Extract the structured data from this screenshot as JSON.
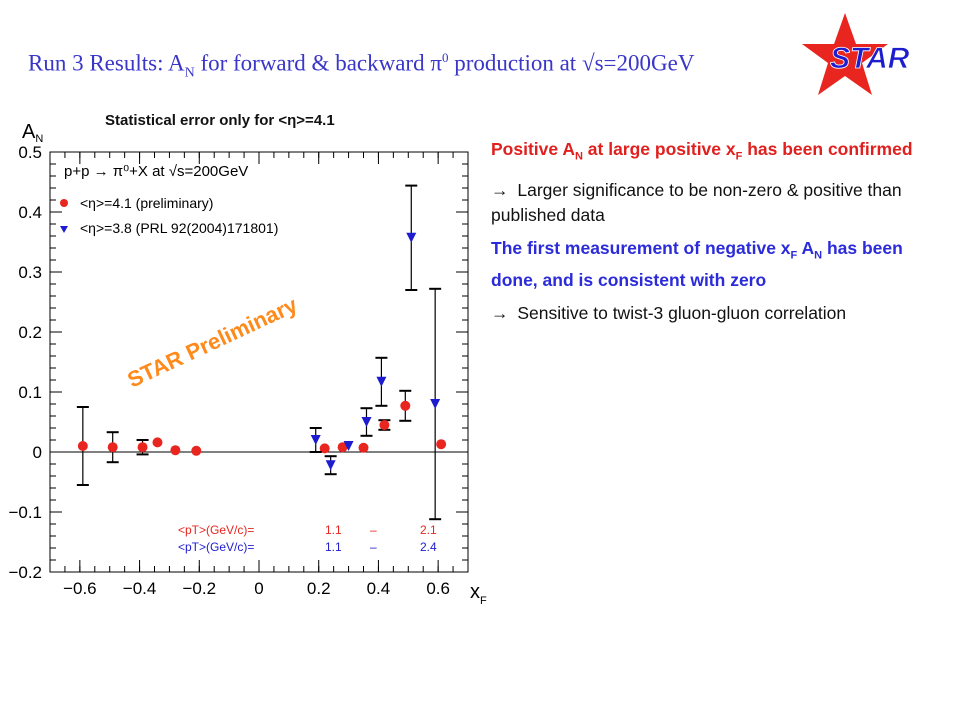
{
  "title": {
    "prefix": "Run 3 Results: A",
    "sub": "N",
    "middle": " for forward & backward π",
    "sup": "0",
    "suffix": " production at √s=200GeV"
  },
  "logo": {
    "text": "STAR",
    "star_color": "#e8261f",
    "text_color": "#1d1dcf"
  },
  "notes": {
    "b1": {
      "a": "Positive A",
      "a_sub": "N",
      "b": " at large positive x",
      "b_sub": "F",
      "c": "  has been confirmed"
    },
    "b2": {
      "arrow": "→",
      "text": " Larger significance to be non-zero & positive than published data"
    },
    "b3": {
      "a": "The first measurement of negative x",
      "a_sub": "F",
      "b": " A",
      "b_sub": "N",
      "c": " has been done, and is consistent with zero"
    },
    "b4": {
      "arrow": "→",
      "text": " Sensitive to twist-3 gluon-gluon correlation"
    }
  },
  "chart_data": {
    "type": "scatter",
    "caption": "Statistical error only for <η>=4.1",
    "ylabel": "AN",
    "xlabel": "xF",
    "xlim": [
      -0.7,
      0.7
    ],
    "ylim": [
      -0.2,
      0.5
    ],
    "x_ticks": [
      "−0.6",
      "−0.4",
      "−0.2",
      "0",
      "0.2",
      "0.4",
      "0.6"
    ],
    "y_ticks": [
      "−0.2",
      "−0.1",
      "0",
      "0.1",
      "0.2",
      "0.3",
      "0.4",
      "0.5"
    ],
    "reaction": "p+p → π⁰+X at √s=200GeV",
    "watermark": "STAR Preliminary",
    "pt_rows": [
      {
        "label": "<pT>(GeV/c)=",
        "low": "1.1",
        "dash": "–",
        "high": "2.1",
        "color": "#e8261f"
      },
      {
        "label": "<pT>(GeV/c)=",
        "low": "1.1",
        "dash": "–",
        "high": "2.4",
        "color": "#1d1dcf"
      }
    ],
    "series": [
      {
        "name": "<η>=4.1 (preliminary)",
        "marker": "circle",
        "color": "#e8261f",
        "points": [
          {
            "x": -0.59,
            "y": 0.01,
            "err": 0.065
          },
          {
            "x": -0.49,
            "y": 0.008,
            "err": 0.025
          },
          {
            "x": -0.39,
            "y": 0.008,
            "err": 0.012
          },
          {
            "x": -0.34,
            "y": 0.016,
            "err": 0.0
          },
          {
            "x": -0.28,
            "y": 0.003,
            "err": 0.0
          },
          {
            "x": -0.21,
            "y": 0.002,
            "err": 0.0
          },
          {
            "x": 0.22,
            "y": 0.006,
            "err": 0.0
          },
          {
            "x": 0.28,
            "y": 0.008,
            "err": 0.0
          },
          {
            "x": 0.35,
            "y": 0.007,
            "err": 0.0
          },
          {
            "x": 0.42,
            "y": 0.045,
            "err": 0.008
          },
          {
            "x": 0.49,
            "y": 0.077,
            "err": 0.025
          },
          {
            "x": 0.61,
            "y": 0.013,
            "err": 0.0
          }
        ]
      },
      {
        "name": "<η>=3.8 (PRL 92(2004)171801)",
        "marker": "triangle",
        "color": "#1d1dcf",
        "points": [
          {
            "x": 0.19,
            "y": 0.02,
            "err": 0.02
          },
          {
            "x": 0.24,
            "y": -0.022,
            "err": 0.015
          },
          {
            "x": 0.3,
            "y": 0.01,
            "err": 0.0
          },
          {
            "x": 0.36,
            "y": 0.05,
            "err": 0.023
          },
          {
            "x": 0.41,
            "y": 0.117,
            "err": 0.04
          },
          {
            "x": 0.51,
            "y": 0.357,
            "err": 0.087
          },
          {
            "x": 0.59,
            "y": 0.08,
            "err": 0.192
          }
        ]
      }
    ]
  }
}
